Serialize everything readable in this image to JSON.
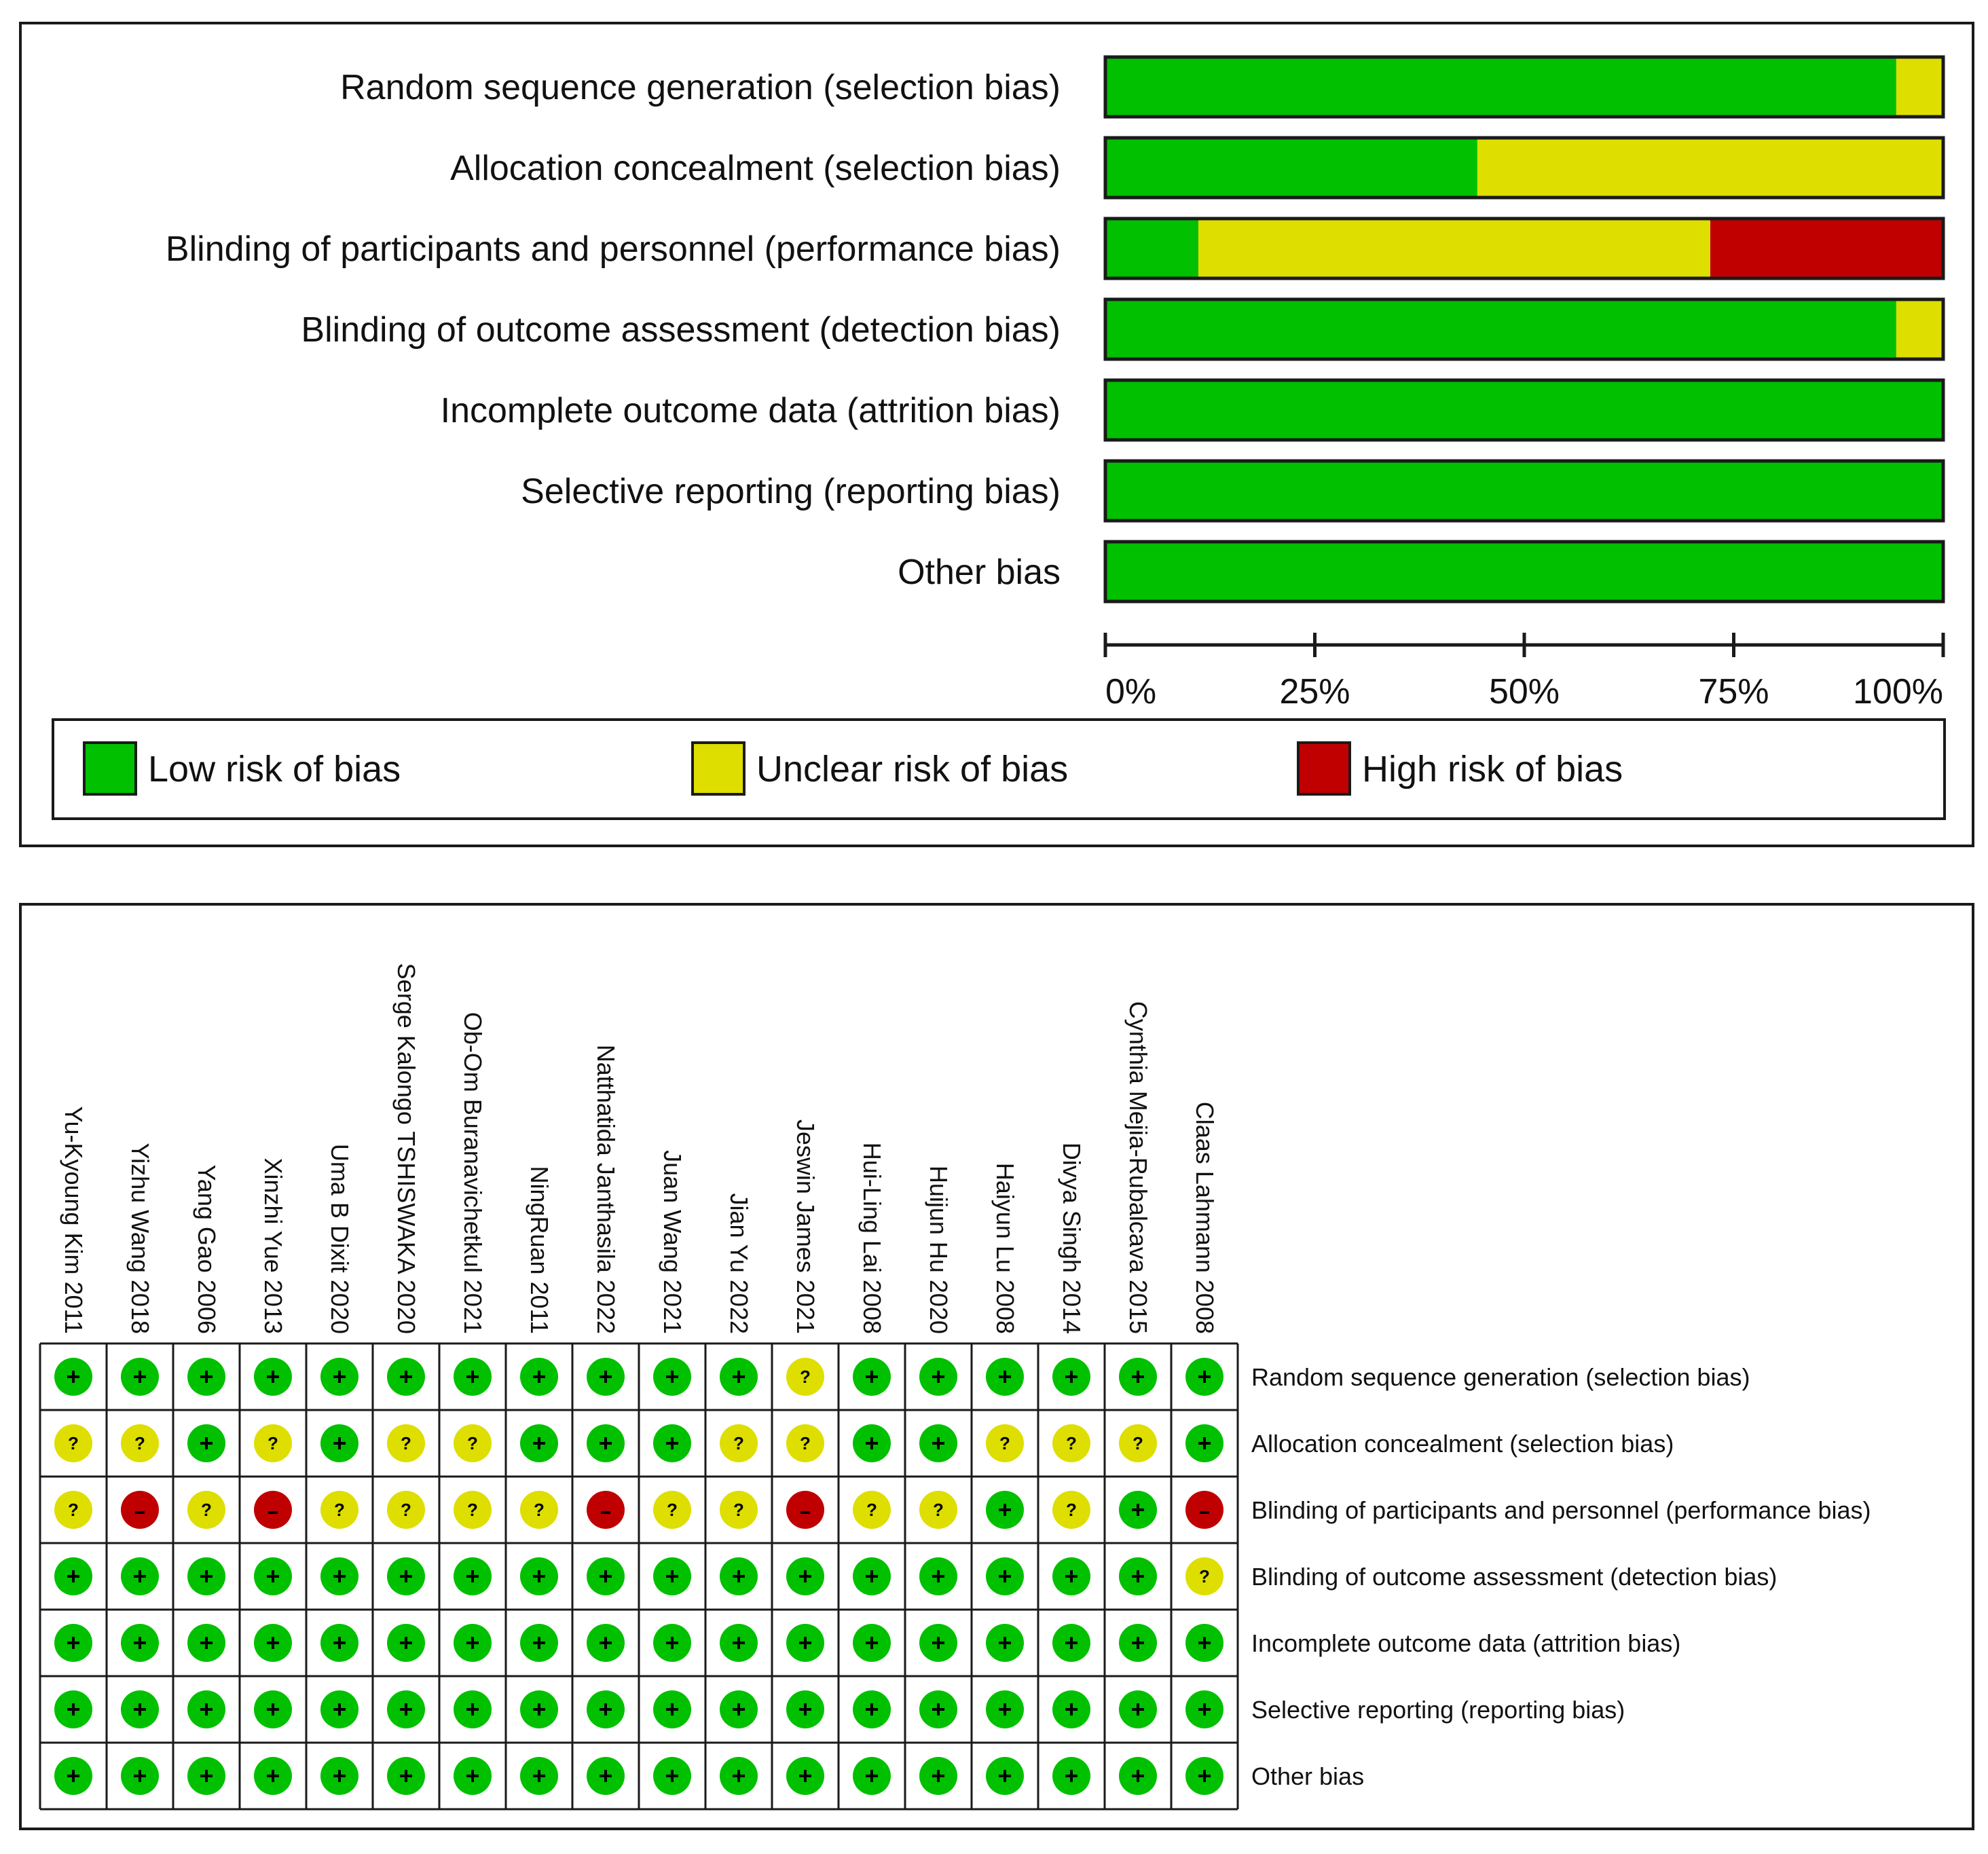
{
  "colors": {
    "low": "#00c000",
    "unclear": "#dede00",
    "high": "#c00000",
    "border": "#1a1a1a"
  },
  "chart_data": [
    {
      "type": "bar",
      "subtype": "stacked-horizontal-percent",
      "categories": [
        "Random sequence generation (selection bias)",
        "Allocation concealment (selection bias)",
        "Blinding of participants and personnel (performance bias)",
        "Blinding of outcome assessment (detection bias)",
        "Incomplete outcome data (attrition bias)",
        "Selective reporting (reporting bias)",
        "Other bias"
      ],
      "series": [
        {
          "name": "Low risk of bias",
          "color_key": "low",
          "values": [
            94.4,
            44.4,
            11.1,
            94.4,
            100,
            100,
            100
          ]
        },
        {
          "name": "Unclear risk of bias",
          "color_key": "unclear",
          "values": [
            5.6,
            55.6,
            61.1,
            5.6,
            0,
            0,
            0
          ]
        },
        {
          "name": "High risk of bias",
          "color_key": "high",
          "values": [
            0,
            0,
            27.8,
            0,
            0,
            0,
            0
          ]
        }
      ],
      "xlim": [
        0,
        100
      ],
      "x_ticks": [
        0,
        25,
        50,
        75,
        100
      ],
      "x_tick_labels": [
        "0%",
        "25%",
        "50%",
        "75%",
        "100%"
      ],
      "legend": [
        "Low risk of bias",
        "Unclear risk of bias",
        "High risk of bias"
      ],
      "legend_position": "bottom"
    },
    {
      "type": "table",
      "subtype": "risk-of-bias-summary",
      "studies": [
        "Yu-Kyoung Kim 2011",
        "Yizhu Wang 2018",
        "Yang Gao 2006",
        "Xinzhi Yue 2013",
        "Uma B Dixit 2020",
        "Serge Kalongo TSHISWAKA 2020",
        "Ob-Om Buranavichetkul 2021",
        "NingRuan 2011",
        "Natthatida Janthasila 2022",
        "Juan Wang 2021",
        "Jian Yu 2022",
        "Jeswin James 2021",
        "Hui-Ling Lai 2008",
        "Huijun Hu 2020",
        "Haiyun Lu 2008",
        "Divya Singh 2014",
        "Cynthia Mejia-Rubalcava 2015",
        "Claas Lahmann 2008"
      ],
      "domains": [
        "Random sequence generation (selection bias)",
        "Allocation concealment (selection bias)",
        "Blinding of participants and personnel (performance bias)",
        "Blinding of outcome assessment (detection bias)",
        "Incomplete outcome data (attrition bias)",
        "Selective reporting (reporting bias)",
        "Other bias"
      ],
      "symbols": {
        "low": "+",
        "unclear": "?",
        "high": "-"
      },
      "judgements": [
        [
          "low",
          "low",
          "low",
          "low",
          "low",
          "low",
          "low",
          "low",
          "low",
          "low",
          "low",
          "unclear",
          "low",
          "low",
          "low",
          "low",
          "low",
          "low"
        ],
        [
          "unclear",
          "unclear",
          "low",
          "unclear",
          "low",
          "unclear",
          "unclear",
          "low",
          "low",
          "low",
          "unclear",
          "unclear",
          "low",
          "low",
          "unclear",
          "unclear",
          "unclear",
          "low"
        ],
        [
          "unclear",
          "high",
          "unclear",
          "high",
          "unclear",
          "unclear",
          "unclear",
          "unclear",
          "high",
          "unclear",
          "unclear",
          "high",
          "unclear",
          "unclear",
          "low",
          "unclear",
          "low",
          "high"
        ],
        [
          "low",
          "low",
          "low",
          "low",
          "low",
          "low",
          "low",
          "low",
          "low",
          "low",
          "low",
          "low",
          "low",
          "low",
          "low",
          "low",
          "low",
          "unclear"
        ],
        [
          "low",
          "low",
          "low",
          "low",
          "low",
          "low",
          "low",
          "low",
          "low",
          "low",
          "low",
          "low",
          "low",
          "low",
          "low",
          "low",
          "low",
          "low"
        ],
        [
          "low",
          "low",
          "low",
          "low",
          "low",
          "low",
          "low",
          "low",
          "low",
          "low",
          "low",
          "low",
          "low",
          "low",
          "low",
          "low",
          "low",
          "low"
        ],
        [
          "low",
          "low",
          "low",
          "low",
          "low",
          "low",
          "low",
          "low",
          "low",
          "low",
          "low",
          "low",
          "low",
          "low",
          "low",
          "low",
          "low",
          "low"
        ]
      ]
    }
  ]
}
